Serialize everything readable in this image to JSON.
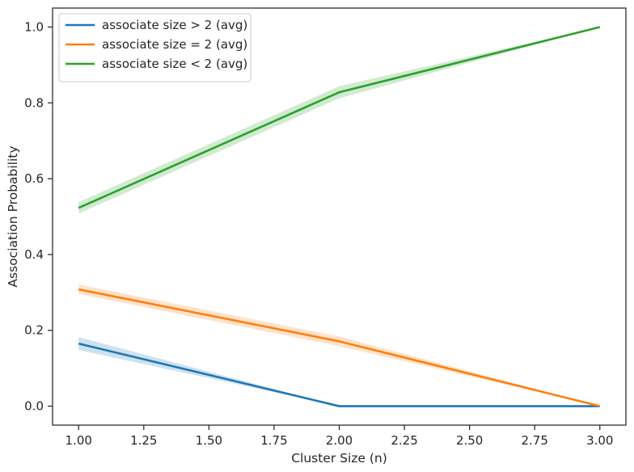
{
  "chart_data": {
    "type": "line",
    "xlabel": "Cluster Size (n)",
    "ylabel": "Association Probability",
    "xlim": [
      0.9,
      3.1
    ],
    "ylim": [
      -0.05,
      1.05
    ],
    "xticks": [
      1.0,
      1.25,
      1.5,
      1.75,
      2.0,
      2.25,
      2.5,
      2.75,
      3.0
    ],
    "xtick_labels": [
      "1.00",
      "1.25",
      "1.50",
      "1.75",
      "2.00",
      "2.25",
      "2.50",
      "2.75",
      "3.00"
    ],
    "yticks": [
      0.0,
      0.2,
      0.4,
      0.6,
      0.8,
      1.0
    ],
    "ytick_labels": [
      "0.0",
      "0.2",
      "0.4",
      "0.6",
      "0.8",
      "1.0"
    ],
    "grid": false,
    "legend": "upper-left",
    "x": [
      1,
      2,
      3
    ],
    "series": [
      {
        "name": "associate size > 2 (avg)",
        "color": "#1f77b4",
        "values": [
          0.165,
          0.0,
          0.0
        ],
        "ci_low": [
          0.148,
          0.0,
          0.0
        ],
        "ci_high": [
          0.182,
          0.0,
          0.0
        ]
      },
      {
        "name": "associate size = 2 (avg)",
        "color": "#ff7f0e",
        "values": [
          0.308,
          0.171,
          0.0
        ],
        "ci_low": [
          0.296,
          0.158,
          0.0
        ],
        "ci_high": [
          0.321,
          0.184,
          0.0
        ]
      },
      {
        "name": "associate size < 2 (avg)",
        "color": "#2ca02c",
        "values": [
          0.523,
          0.828,
          1.0
        ],
        "ci_low": [
          0.508,
          0.812,
          1.0
        ],
        "ci_high": [
          0.538,
          0.844,
          1.0
        ]
      }
    ]
  }
}
